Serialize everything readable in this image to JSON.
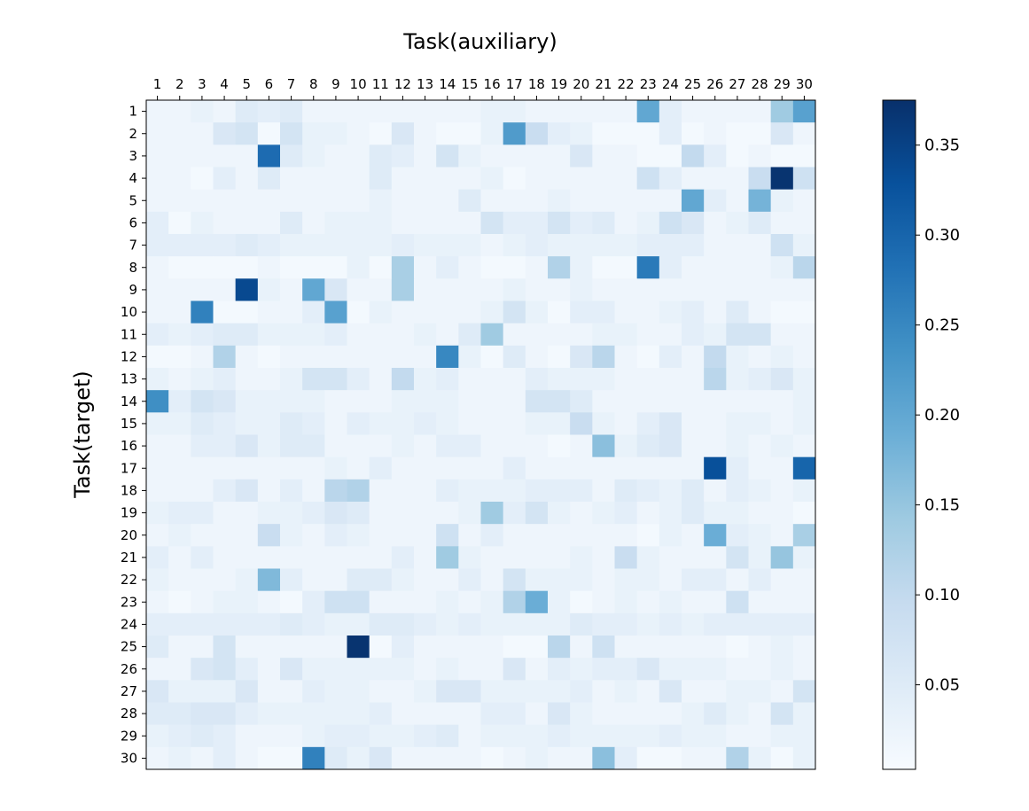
{
  "chart_data": {
    "type": "heatmap",
    "title": "Task(auxiliary)",
    "xlabel": "Task(auxiliary)",
    "ylabel": "Task(target)",
    "x_axis_position": "top",
    "colormap": "Blues",
    "color_low": "#f7fbff",
    "color_high": "#08306b",
    "vmin": 0.003,
    "vmax": 0.375,
    "colorbar_ticks": [
      0.05,
      0.1,
      0.15,
      0.2,
      0.25,
      0.3,
      0.35
    ],
    "colorbar_tick_labels": [
      "0.05",
      "0.10",
      "0.15",
      "0.20",
      "0.25",
      "0.30",
      "0.35"
    ],
    "x_categories": [
      "1",
      "2",
      "3",
      "4",
      "5",
      "6",
      "7",
      "8",
      "9",
      "10",
      "11",
      "12",
      "13",
      "14",
      "15",
      "16",
      "17",
      "18",
      "19",
      "20",
      "21",
      "22",
      "23",
      "24",
      "25",
      "26",
      "27",
      "28",
      "29",
      "30"
    ],
    "y_categories": [
      "1",
      "2",
      "3",
      "4",
      "5",
      "6",
      "7",
      "8",
      "9",
      "10",
      "11",
      "12",
      "13",
      "14",
      "15",
      "16",
      "17",
      "18",
      "19",
      "20",
      "21",
      "22",
      "23",
      "24",
      "25",
      "26",
      "27",
      "28",
      "29",
      "30"
    ],
    "values": [
      [
        0.02,
        0.02,
        0.03,
        0.02,
        0.05,
        0.04,
        0.05,
        0.02,
        0.02,
        0.02,
        0.02,
        0.02,
        0.02,
        0.02,
        0.02,
        0.03,
        0.03,
        0.02,
        0.02,
        0.02,
        0.02,
        0.02,
        0.2,
        0.04,
        0.02,
        0.02,
        0.02,
        0.02,
        0.14,
        0.21
      ],
      [
        0.02,
        0.02,
        0.02,
        0.06,
        0.07,
        0.01,
        0.07,
        0.03,
        0.03,
        0.02,
        0.01,
        0.06,
        0.02,
        0.01,
        0.01,
        0.03,
        0.22,
        0.09,
        0.04,
        0.03,
        0.01,
        0.01,
        0.01,
        0.04,
        0.01,
        0.02,
        0.01,
        0.01,
        0.06,
        0.02
      ],
      [
        0.02,
        0.02,
        0.02,
        0.02,
        0.02,
        0.29,
        0.05,
        0.03,
        0.02,
        0.02,
        0.05,
        0.04,
        0.02,
        0.07,
        0.03,
        0.02,
        0.02,
        0.02,
        0.02,
        0.06,
        0.02,
        0.02,
        0.01,
        0.01,
        0.1,
        0.04,
        0.01,
        0.02,
        0.01,
        0.01
      ],
      [
        0.02,
        0.02,
        0.01,
        0.04,
        0.02,
        0.05,
        0.02,
        0.02,
        0.02,
        0.02,
        0.05,
        0.02,
        0.02,
        0.02,
        0.02,
        0.03,
        0.01,
        0.02,
        0.02,
        0.02,
        0.02,
        0.02,
        0.08,
        0.04,
        0.02,
        0.02,
        0.02,
        0.09,
        0.37,
        0.08
      ],
      [
        0.02,
        0.02,
        0.02,
        0.02,
        0.02,
        0.02,
        0.02,
        0.02,
        0.02,
        0.02,
        0.03,
        0.02,
        0.02,
        0.02,
        0.05,
        0.02,
        0.02,
        0.02,
        0.03,
        0.02,
        0.02,
        0.02,
        0.02,
        0.02,
        0.2,
        0.04,
        0.02,
        0.18,
        0.03,
        0.02
      ],
      [
        0.04,
        0.01,
        0.03,
        0.02,
        0.02,
        0.02,
        0.05,
        0.02,
        0.03,
        0.03,
        0.03,
        0.02,
        0.02,
        0.02,
        0.02,
        0.07,
        0.04,
        0.04,
        0.07,
        0.04,
        0.05,
        0.02,
        0.03,
        0.08,
        0.06,
        0.02,
        0.03,
        0.05,
        0.02,
        0.02
      ],
      [
        0.04,
        0.04,
        0.04,
        0.04,
        0.05,
        0.04,
        0.03,
        0.03,
        0.03,
        0.03,
        0.03,
        0.04,
        0.03,
        0.03,
        0.03,
        0.02,
        0.03,
        0.04,
        0.03,
        0.03,
        0.03,
        0.03,
        0.04,
        0.04,
        0.04,
        0.02,
        0.02,
        0.02,
        0.08,
        0.03
      ],
      [
        0.02,
        0.01,
        0.01,
        0.01,
        0.01,
        0.02,
        0.01,
        0.01,
        0.01,
        0.03,
        0.01,
        0.13,
        0.02,
        0.04,
        0.02,
        0.01,
        0.01,
        0.02,
        0.12,
        0.03,
        0.01,
        0.01,
        0.27,
        0.04,
        0.02,
        0.02,
        0.02,
        0.02,
        0.03,
        0.11
      ],
      [
        0.02,
        0.02,
        0.02,
        0.02,
        0.34,
        0.03,
        0.02,
        0.2,
        0.06,
        0.02,
        0.02,
        0.13,
        0.02,
        0.02,
        0.02,
        0.02,
        0.03,
        0.02,
        0.02,
        0.03,
        0.02,
        0.02,
        0.02,
        0.02,
        0.02,
        0.02,
        0.02,
        0.02,
        0.02,
        0.02
      ],
      [
        0.02,
        0.02,
        0.26,
        0.01,
        0.01,
        0.02,
        0.02,
        0.04,
        0.21,
        0.01,
        0.03,
        0.02,
        0.02,
        0.02,
        0.02,
        0.03,
        0.07,
        0.03,
        0.01,
        0.04,
        0.04,
        0.02,
        0.02,
        0.03,
        0.04,
        0.02,
        0.05,
        0.02,
        0.01,
        0.01
      ],
      [
        0.04,
        0.03,
        0.04,
        0.05,
        0.05,
        0.03,
        0.03,
        0.03,
        0.04,
        0.02,
        0.02,
        0.02,
        0.03,
        0.02,
        0.05,
        0.14,
        0.02,
        0.02,
        0.02,
        0.02,
        0.03,
        0.03,
        0.02,
        0.02,
        0.04,
        0.03,
        0.07,
        0.07,
        0.02,
        0.02
      ],
      [
        0.01,
        0.01,
        0.02,
        0.12,
        0.02,
        0.01,
        0.02,
        0.02,
        0.02,
        0.02,
        0.02,
        0.02,
        0.02,
        0.25,
        0.03,
        0.01,
        0.05,
        0.02,
        0.01,
        0.06,
        0.11,
        0.02,
        0.01,
        0.04,
        0.02,
        0.1,
        0.03,
        0.02,
        0.03,
        0.02
      ],
      [
        0.03,
        0.02,
        0.03,
        0.04,
        0.02,
        0.02,
        0.03,
        0.07,
        0.07,
        0.04,
        0.02,
        0.1,
        0.03,
        0.04,
        0.02,
        0.02,
        0.02,
        0.04,
        0.03,
        0.03,
        0.03,
        0.02,
        0.02,
        0.02,
        0.02,
        0.11,
        0.03,
        0.04,
        0.06,
        0.03
      ],
      [
        0.24,
        0.04,
        0.07,
        0.06,
        0.03,
        0.03,
        0.03,
        0.03,
        0.02,
        0.02,
        0.02,
        0.03,
        0.03,
        0.03,
        0.02,
        0.02,
        0.02,
        0.07,
        0.07,
        0.05,
        0.02,
        0.02,
        0.02,
        0.02,
        0.02,
        0.02,
        0.02,
        0.02,
        0.02,
        0.03
      ],
      [
        0.03,
        0.03,
        0.05,
        0.04,
        0.03,
        0.03,
        0.05,
        0.04,
        0.02,
        0.04,
        0.03,
        0.03,
        0.04,
        0.03,
        0.02,
        0.02,
        0.02,
        0.03,
        0.03,
        0.09,
        0.03,
        0.02,
        0.04,
        0.06,
        0.02,
        0.02,
        0.03,
        0.03,
        0.02,
        0.03
      ],
      [
        0.02,
        0.02,
        0.04,
        0.04,
        0.06,
        0.03,
        0.05,
        0.05,
        0.02,
        0.02,
        0.02,
        0.03,
        0.02,
        0.04,
        0.04,
        0.02,
        0.02,
        0.02,
        0.01,
        0.02,
        0.16,
        0.03,
        0.05,
        0.06,
        0.02,
        0.02,
        0.03,
        0.02,
        0.03,
        0.02
      ],
      [
        0.02,
        0.02,
        0.02,
        0.02,
        0.02,
        0.02,
        0.02,
        0.02,
        0.03,
        0.02,
        0.04,
        0.02,
        0.02,
        0.02,
        0.02,
        0.02,
        0.04,
        0.02,
        0.02,
        0.02,
        0.02,
        0.02,
        0.02,
        0.02,
        0.02,
        0.33,
        0.04,
        0.02,
        0.02,
        0.3
      ],
      [
        0.02,
        0.02,
        0.02,
        0.04,
        0.06,
        0.02,
        0.04,
        0.02,
        0.11,
        0.12,
        0.02,
        0.02,
        0.02,
        0.04,
        0.03,
        0.03,
        0.03,
        0.04,
        0.04,
        0.04,
        0.02,
        0.05,
        0.04,
        0.03,
        0.05,
        0.02,
        0.04,
        0.03,
        0.02,
        0.03
      ],
      [
        0.03,
        0.04,
        0.04,
        0.02,
        0.02,
        0.03,
        0.03,
        0.04,
        0.06,
        0.05,
        0.02,
        0.02,
        0.02,
        0.02,
        0.03,
        0.14,
        0.04,
        0.07,
        0.03,
        0.02,
        0.03,
        0.04,
        0.02,
        0.03,
        0.05,
        0.03,
        0.03,
        0.02,
        0.02,
        0.01
      ],
      [
        0.02,
        0.03,
        0.02,
        0.02,
        0.02,
        0.09,
        0.03,
        0.02,
        0.04,
        0.03,
        0.02,
        0.02,
        0.02,
        0.08,
        0.02,
        0.04,
        0.02,
        0.02,
        0.02,
        0.02,
        0.02,
        0.02,
        0.01,
        0.03,
        0.02,
        0.19,
        0.04,
        0.03,
        0.02,
        0.13
      ],
      [
        0.04,
        0.02,
        0.04,
        0.02,
        0.02,
        0.02,
        0.02,
        0.02,
        0.02,
        0.02,
        0.02,
        0.04,
        0.02,
        0.14,
        0.03,
        0.02,
        0.02,
        0.02,
        0.02,
        0.03,
        0.02,
        0.09,
        0.03,
        0.02,
        0.02,
        0.02,
        0.07,
        0.03,
        0.15,
        0.03
      ],
      [
        0.03,
        0.02,
        0.02,
        0.02,
        0.03,
        0.17,
        0.04,
        0.02,
        0.02,
        0.05,
        0.05,
        0.03,
        0.02,
        0.02,
        0.04,
        0.02,
        0.07,
        0.03,
        0.03,
        0.03,
        0.02,
        0.03,
        0.03,
        0.02,
        0.04,
        0.04,
        0.02,
        0.04,
        0.02,
        0.02
      ],
      [
        0.02,
        0.01,
        0.02,
        0.03,
        0.03,
        0.02,
        0.01,
        0.04,
        0.08,
        0.08,
        0.02,
        0.02,
        0.02,
        0.03,
        0.02,
        0.03,
        0.12,
        0.19,
        0.03,
        0.01,
        0.02,
        0.03,
        0.02,
        0.03,
        0.02,
        0.02,
        0.08,
        0.02,
        0.02,
        0.02
      ],
      [
        0.04,
        0.04,
        0.04,
        0.04,
        0.04,
        0.04,
        0.05,
        0.04,
        0.03,
        0.03,
        0.05,
        0.05,
        0.04,
        0.03,
        0.04,
        0.03,
        0.03,
        0.03,
        0.03,
        0.05,
        0.04,
        0.04,
        0.03,
        0.04,
        0.03,
        0.04,
        0.04,
        0.04,
        0.04,
        0.04
      ],
      [
        0.05,
        0.02,
        0.02,
        0.07,
        0.02,
        0.02,
        0.02,
        0.02,
        0.02,
        0.37,
        0.01,
        0.04,
        0.02,
        0.02,
        0.02,
        0.02,
        0.01,
        0.01,
        0.11,
        0.02,
        0.08,
        0.02,
        0.02,
        0.02,
        0.02,
        0.02,
        0.01,
        0.02,
        0.03,
        0.02
      ],
      [
        0.02,
        0.02,
        0.06,
        0.07,
        0.04,
        0.02,
        0.06,
        0.03,
        0.03,
        0.03,
        0.03,
        0.03,
        0.02,
        0.03,
        0.02,
        0.02,
        0.06,
        0.02,
        0.04,
        0.03,
        0.04,
        0.04,
        0.06,
        0.03,
        0.03,
        0.03,
        0.02,
        0.02,
        0.03,
        0.02
      ],
      [
        0.06,
        0.03,
        0.03,
        0.03,
        0.06,
        0.02,
        0.02,
        0.04,
        0.03,
        0.03,
        0.02,
        0.02,
        0.03,
        0.06,
        0.06,
        0.03,
        0.03,
        0.03,
        0.03,
        0.04,
        0.02,
        0.03,
        0.02,
        0.06,
        0.02,
        0.02,
        0.03,
        0.03,
        0.02,
        0.07
      ],
      [
        0.05,
        0.05,
        0.06,
        0.06,
        0.04,
        0.03,
        0.03,
        0.03,
        0.03,
        0.03,
        0.04,
        0.02,
        0.02,
        0.02,
        0.02,
        0.04,
        0.04,
        0.02,
        0.06,
        0.03,
        0.02,
        0.02,
        0.02,
        0.02,
        0.03,
        0.05,
        0.03,
        0.02,
        0.07,
        0.03
      ],
      [
        0.03,
        0.04,
        0.05,
        0.04,
        0.02,
        0.02,
        0.02,
        0.03,
        0.04,
        0.04,
        0.03,
        0.03,
        0.04,
        0.05,
        0.02,
        0.03,
        0.03,
        0.03,
        0.04,
        0.03,
        0.03,
        0.03,
        0.03,
        0.04,
        0.03,
        0.03,
        0.02,
        0.02,
        0.03,
        0.03
      ],
      [
        0.02,
        0.03,
        0.02,
        0.04,
        0.02,
        0.01,
        0.01,
        0.26,
        0.05,
        0.03,
        0.06,
        0.02,
        0.02,
        0.02,
        0.02,
        0.01,
        0.02,
        0.03,
        0.02,
        0.02,
        0.16,
        0.04,
        0.01,
        0.01,
        0.02,
        0.02,
        0.12,
        0.03,
        0.01,
        0.03
      ]
    ]
  }
}
